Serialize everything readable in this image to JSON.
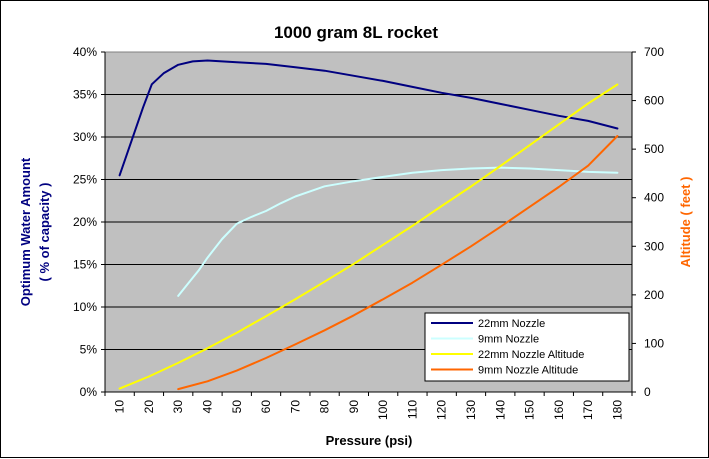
{
  "chart_data": {
    "type": "line",
    "title": "1000 gram 8L rocket",
    "xlabel": "Pressure (psi)",
    "ylabel_left_line1": "Optimum Water Amount",
    "ylabel_left_line2": "( % of capacity )",
    "ylabel_right": "Altitude ( feet )",
    "x_categories": [
      10,
      20,
      30,
      40,
      50,
      60,
      70,
      80,
      90,
      100,
      110,
      120,
      130,
      140,
      150,
      160,
      170,
      180
    ],
    "ylim_left": [
      0,
      40
    ],
    "yticks_left": [
      "0%",
      "5%",
      "10%",
      "15%",
      "20%",
      "25%",
      "30%",
      "35%",
      "40%"
    ],
    "ylim_right": [
      0,
      700
    ],
    "yticks_right": [
      "0",
      "100",
      "200",
      "300",
      "400",
      "500",
      "600",
      "700"
    ],
    "grid": true,
    "legend_position": "bottom-right",
    "series": [
      {
        "name": "22mm Nozzle",
        "axis": "left",
        "color": "#000080",
        "points": [
          [
            10,
            25.5
          ],
          [
            12,
            27.5
          ],
          [
            15,
            30.5
          ],
          [
            18,
            33.5
          ],
          [
            21,
            36.2
          ],
          [
            25,
            37.5
          ],
          [
            30,
            38.5
          ],
          [
            35,
            38.9
          ],
          [
            40,
            39
          ],
          [
            45,
            38.9
          ],
          [
            50,
            38.8
          ],
          [
            60,
            38.6
          ],
          [
            70,
            38.2
          ],
          [
            80,
            37.8
          ],
          [
            90,
            37.2
          ],
          [
            100,
            36.6
          ],
          [
            110,
            35.9
          ],
          [
            120,
            35.2
          ],
          [
            130,
            34.6
          ],
          [
            140,
            33.9
          ],
          [
            150,
            33.2
          ],
          [
            160,
            32.5
          ],
          [
            170,
            31.9
          ],
          [
            180,
            31
          ]
        ]
      },
      {
        "name": "9mm Nozzle",
        "axis": "left",
        "color": "#ccffff",
        "points": [
          [
            30,
            11.3
          ],
          [
            33,
            12.6
          ],
          [
            37,
            14.3
          ],
          [
            40,
            15.8
          ],
          [
            45,
            18
          ],
          [
            50,
            19.8
          ],
          [
            55,
            20.6
          ],
          [
            60,
            21.3
          ],
          [
            65,
            22.2
          ],
          [
            70,
            23
          ],
          [
            75,
            23.6
          ],
          [
            80,
            24.2
          ],
          [
            90,
            24.8
          ],
          [
            100,
            25.3
          ],
          [
            110,
            25.8
          ],
          [
            120,
            26.1
          ],
          [
            130,
            26.3
          ],
          [
            140,
            26.4
          ],
          [
            150,
            26.3
          ],
          [
            160,
            26.1
          ],
          [
            170,
            25.9
          ],
          [
            180,
            25.8
          ]
        ]
      },
      {
        "name": "22mm Nozzle Altitude",
        "axis": "right",
        "color": "#ffff00",
        "points": [
          [
            10,
            7
          ],
          [
            20,
            32
          ],
          [
            30,
            60
          ],
          [
            40,
            90
          ],
          [
            50,
            122
          ],
          [
            60,
            156
          ],
          [
            70,
            191
          ],
          [
            80,
            227
          ],
          [
            90,
            264
          ],
          [
            100,
            303
          ],
          [
            110,
            342
          ],
          [
            120,
            383
          ],
          [
            130,
            423
          ],
          [
            140,
            465
          ],
          [
            150,
            508
          ],
          [
            160,
            551
          ],
          [
            170,
            594
          ],
          [
            180,
            633
          ]
        ]
      },
      {
        "name": "9mm Nozzle Altitude",
        "axis": "right",
        "color": "#ff6600",
        "points": [
          [
            30,
            6
          ],
          [
            40,
            22
          ],
          [
            50,
            44
          ],
          [
            60,
            70
          ],
          [
            70,
            98
          ],
          [
            80,
            127
          ],
          [
            90,
            158
          ],
          [
            100,
            191
          ],
          [
            110,
            225
          ],
          [
            120,
            262
          ],
          [
            130,
            300
          ],
          [
            140,
            340
          ],
          [
            150,
            381
          ],
          [
            160,
            422
          ],
          [
            170,
            466
          ],
          [
            180,
            527
          ]
        ]
      }
    ]
  }
}
